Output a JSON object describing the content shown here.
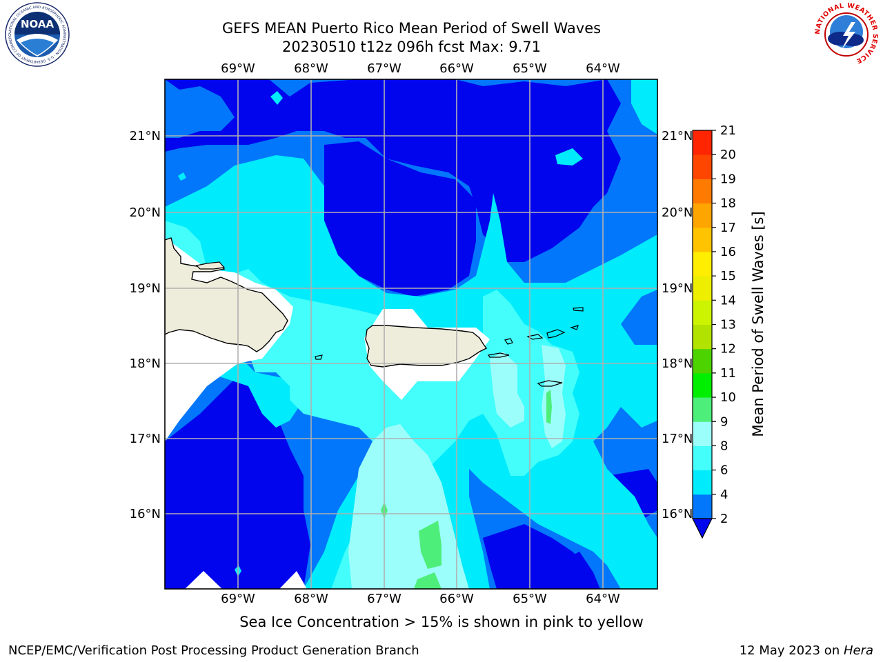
{
  "header": {
    "title_line1": "GEFS MEAN Puerto Rico Mean Period of Swell Waves",
    "title_line2": "20230510 t12z 096h fcst   Max: 9.71"
  },
  "logos": {
    "left": "NOAA",
    "left_ring_text": "NATIONAL OCEANIC AND ATMOSPHERIC ADMINISTRATION · U.S. DEPARTMENT OF COMMERCE",
    "right_ring_text": "NATIONAL WEATHER SERVICE"
  },
  "map": {
    "lon_labels": [
      "69°W",
      "68°W",
      "67°W",
      "66°W",
      "65°W",
      "64°W"
    ],
    "lat_labels": [
      "21°N",
      "20°N",
      "19°N",
      "18°N",
      "17°N",
      "16°N"
    ],
    "region": "Puerto Rico"
  },
  "colorbar": {
    "label": "Mean Period of Swell Waves [s]",
    "ticks": [
      "2",
      "4",
      "6",
      "8",
      "9",
      "10",
      "11",
      "12",
      "13",
      "14",
      "15",
      "16",
      "17",
      "18",
      "19",
      "20",
      "21"
    ],
    "colors": [
      "#0005ee",
      "#0277fb",
      "#00ebfb",
      "#43fefb",
      "#9cfefb",
      "#4eee7a",
      "#00ee00",
      "#4dd300",
      "#b2e300",
      "#ccf400",
      "#eeee00",
      "#ffee00",
      "#ffc300",
      "#ffa500",
      "#ff7a00",
      "#ff4600",
      "#ff2500",
      "#ff0000"
    ],
    "extend_color": "#0005ee"
  },
  "caption": "Sea Ice Concentration > 15% is shown in pink to yellow",
  "footer": {
    "left": "NCEP/EMC/Verification Post Processing Product Generation Branch",
    "right_date": "12 May 2023 on ",
    "right_machine": "Hera"
  }
}
